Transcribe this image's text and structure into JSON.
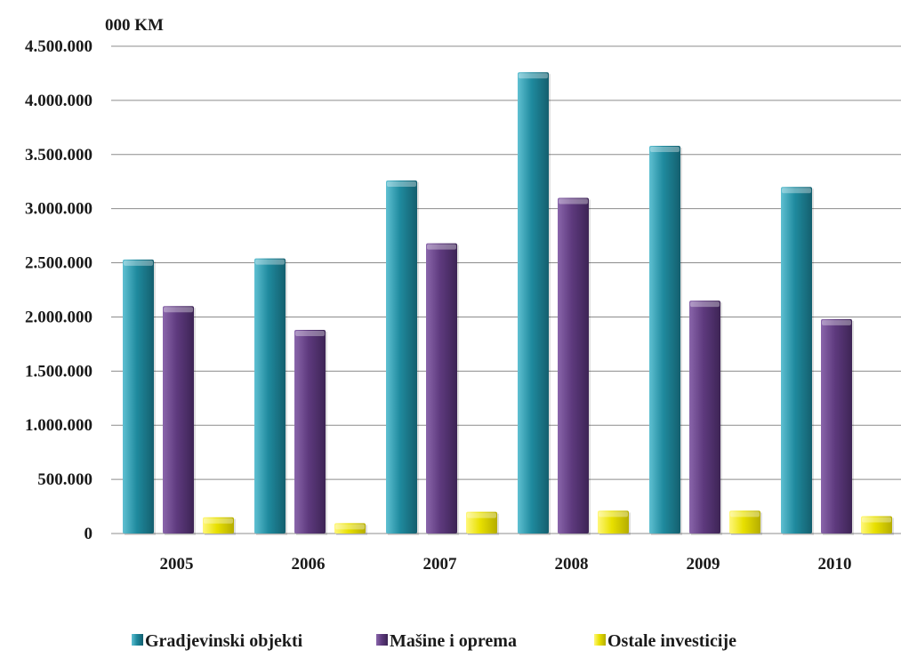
{
  "chart_data": {
    "type": "bar",
    "unit_label": "000 KM",
    "categories": [
      "2005",
      "2006",
      "2007",
      "2008",
      "2009",
      "2010"
    ],
    "series": [
      {
        "name": "Gradjevinski objekti",
        "color": "#1f8a9e",
        "values": [
          2530000,
          2540000,
          3260000,
          4260000,
          3580000,
          3200000
        ]
      },
      {
        "name": "Mašine i oprema",
        "color": "#5e3a7e",
        "values": [
          2100000,
          1880000,
          2680000,
          3100000,
          2150000,
          1980000
        ]
      },
      {
        "name": "Ostale investicije",
        "color": "#e8e000",
        "values": [
          150000,
          95000,
          200000,
          210000,
          210000,
          160000
        ]
      }
    ],
    "yticks": [
      "0",
      "500.000",
      "1.000.000",
      "1.500.000",
      "2.000.000",
      "2.500.000",
      "3.000.000",
      "3.500.000",
      "4.000.000",
      "4.500.000"
    ],
    "ylim": [
      0,
      4500000
    ],
    "grid": true,
    "legend_position": "bottom"
  }
}
